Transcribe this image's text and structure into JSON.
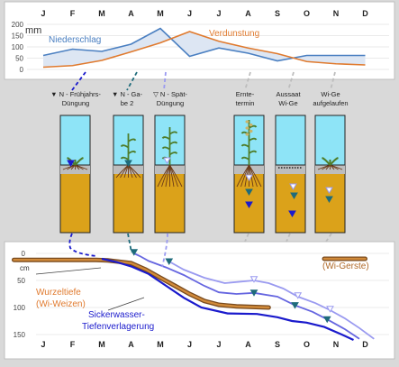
{
  "months": [
    "J",
    "F",
    "M",
    "A",
    "M",
    "J",
    "J",
    "A",
    "S",
    "O",
    "N",
    "D"
  ],
  "colors": {
    "rain": "#4a7fc1",
    "evap": "#e07a2e",
    "water": "#8ee4f7",
    "soil": "#dba21a",
    "soil_dark": "#8b5a2b",
    "root_line": "#7a4b1e",
    "n1": "#1a1acc",
    "n2": "#1e6b7b",
    "n3": "#9a9af0",
    "wi_ge_line": "#b06a2a"
  },
  "top_chart": {
    "unit": "mm",
    "ticks": [
      "200",
      "150",
      "100",
      "50",
      "0"
    ],
    "label_rain": "Niederschlag",
    "label_evap": "Verdunstung",
    "rain": [
      62,
      90,
      80,
      112,
      182,
      58,
      95,
      72,
      38,
      62,
      62,
      62
    ],
    "evap": [
      10,
      17,
      40,
      78,
      118,
      168,
      125,
      95,
      70,
      35,
      25,
      20
    ]
  },
  "events": [
    {
      "label_l1": "N - Frühjahrs-",
      "label_l2": "Düngung",
      "color": "n1",
      "marker": "▼"
    },
    {
      "label_l1": "N - Ga-",
      "label_l2": "be 2",
      "color": "n2",
      "marker": "▼"
    },
    {
      "label_l1": "N - Spät-",
      "label_l2": "Düngung",
      "color": "n3",
      "marker": "▽"
    },
    {
      "label_l1": "Ernte-",
      "label_l2": "termin",
      "color": "",
      "marker": ""
    },
    {
      "label_l1": "Aussaat",
      "label_l2": "Wi-Ge",
      "color": "",
      "marker": ""
    },
    {
      "label_l1": "Wi-Ge",
      "label_l2": "aufgelaufen",
      "color": "",
      "marker": ""
    }
  ],
  "bottom_chart": {
    "unit": "cm",
    "ticks": [
      "0",
      "50",
      "100",
      "150"
    ],
    "root_label_l1": "Wurzeltiefe",
    "root_label_l2": "(Wi-Weizen)",
    "wige_label": "(Wi-Gerste)",
    "seep_label_l1": "Sickerwasser-",
    "seep_label_l2": "Tiefenverlagerung"
  },
  "chart_data": {
    "type": "line",
    "x": [
      "J",
      "F",
      "M",
      "A",
      "M",
      "J",
      "J",
      "A",
      "S",
      "O",
      "N",
      "D"
    ],
    "series": [
      {
        "name": "Niederschlag",
        "values": [
          62,
          90,
          80,
          112,
          182,
          58,
          95,
          72,
          38,
          62,
          62,
          62
        ]
      },
      {
        "name": "Verdunstung",
        "values": [
          10,
          17,
          40,
          78,
          118,
          168,
          125,
          95,
          70,
          35,
          25,
          20
        ]
      }
    ],
    "ylabel": "mm",
    "ylim": [
      0,
      200
    ]
  }
}
